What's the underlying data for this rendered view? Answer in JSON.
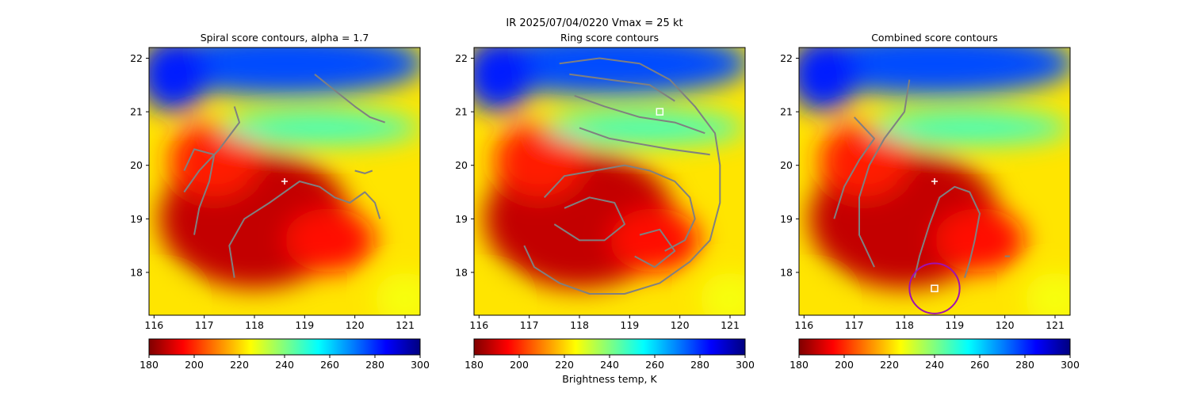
{
  "figure": {
    "suptitle": "IR  2025/07/04/0220    Vmax = 25 kt",
    "colorbar_label": "Brightness temp, K"
  },
  "chart_data": [
    {
      "type": "heatmap",
      "title": "Spiral score contours, alpha =  1.7",
      "xlabel": "",
      "ylabel": "",
      "xlim": [
        115.9,
        121.3
      ],
      "ylim": [
        17.2,
        22.2
      ],
      "xticks": [
        116,
        117,
        118,
        119,
        120,
        121
      ],
      "yticks": [
        18,
        19,
        20,
        21,
        22
      ],
      "colorbar": {
        "cmap": "jet_r",
        "min": 180,
        "max": 300,
        "ticks": [
          180,
          200,
          220,
          240,
          260,
          280,
          300
        ]
      },
      "markers": [
        {
          "kind": "cross",
          "color": "#ffffff",
          "x": 118.6,
          "y": 19.7
        }
      ],
      "contours": [
        {
          "color": "#808080",
          "points": [
            [
              117.6,
              21.1
            ],
            [
              117.7,
              20.8
            ],
            [
              117.3,
              20.3
            ],
            [
              116.9,
              19.9
            ],
            [
              116.6,
              19.5
            ]
          ]
        },
        {
          "color": "#808080",
          "points": [
            [
              116.6,
              19.9
            ],
            [
              116.8,
              20.3
            ],
            [
              117.2,
              20.2
            ],
            [
              117.1,
              19.7
            ],
            [
              116.9,
              19.2
            ],
            [
              116.8,
              18.7
            ]
          ]
        },
        {
          "color": "#808080",
          "points": [
            [
              117.6,
              17.9
            ],
            [
              117.5,
              18.5
            ],
            [
              117.8,
              19.0
            ],
            [
              118.3,
              19.3
            ],
            [
              118.9,
              19.7
            ],
            [
              119.3,
              19.6
            ],
            [
              119.6,
              19.4
            ],
            [
              119.9,
              19.3
            ],
            [
              120.2,
              19.5
            ],
            [
              120.4,
              19.3
            ],
            [
              120.5,
              19.0
            ]
          ]
        },
        {
          "color": "#808080",
          "points": [
            [
              119.2,
              21.7
            ],
            [
              119.6,
              21.4
            ],
            [
              120.0,
              21.1
            ],
            [
              120.3,
              20.9
            ],
            [
              120.6,
              20.8
            ]
          ]
        },
        {
          "color": "#808080",
          "points": [
            [
              120.0,
              19.9
            ],
            [
              120.2,
              19.85
            ],
            [
              120.35,
              19.9
            ]
          ]
        }
      ],
      "blobs": [
        {
          "x": 118.0,
          "y": 19.0,
          "rx": 1.9,
          "ry": 1.3,
          "value": 188
        },
        {
          "x": 117.2,
          "y": 20.1,
          "rx": 0.9,
          "ry": 0.7,
          "value": 198
        },
        {
          "x": 119.5,
          "y": 18.6,
          "rx": 0.9,
          "ry": 0.6,
          "value": 196
        },
        {
          "x": 118.6,
          "y": 21.9,
          "rx": 2.8,
          "ry": 0.6,
          "value": 276
        },
        {
          "x": 116.4,
          "y": 21.7,
          "rx": 0.7,
          "ry": 0.7,
          "value": 282
        },
        {
          "x": 119.3,
          "y": 20.7,
          "rx": 2.0,
          "ry": 0.3,
          "value": 248
        },
        {
          "x": 116.1,
          "y": 17.4,
          "rx": 0.5,
          "ry": 0.4,
          "value": 222
        },
        {
          "x": 121.0,
          "y": 17.5,
          "rx": 0.6,
          "ry": 0.5,
          "value": 226
        }
      ]
    },
    {
      "type": "heatmap",
      "title": "Ring score contours",
      "xlabel": "Brightness temp, K",
      "ylabel": "",
      "xlim": [
        115.9,
        121.3
      ],
      "ylim": [
        17.2,
        22.2
      ],
      "xticks": [
        116,
        117,
        118,
        119,
        120,
        121
      ],
      "yticks": [
        18,
        19,
        20,
        21,
        22
      ],
      "colorbar": {
        "cmap": "jet_r",
        "min": 180,
        "max": 300,
        "ticks": [
          180,
          200,
          220,
          240,
          260,
          280,
          300
        ]
      },
      "markers": [
        {
          "kind": "square",
          "color": "#ffffff",
          "x": 119.6,
          "y": 21.0
        }
      ],
      "contours": [
        {
          "color": "#808080",
          "points": [
            [
              117.6,
              21.9
            ],
            [
              118.4,
              22.0
            ],
            [
              119.2,
              21.9
            ],
            [
              119.8,
              21.6
            ],
            [
              120.3,
              21.1
            ],
            [
              120.7,
              20.6
            ],
            [
              120.8,
              20.0
            ],
            [
              120.8,
              19.3
            ],
            [
              120.6,
              18.6
            ],
            [
              120.2,
              18.2
            ],
            [
              119.6,
              17.8
            ],
            [
              118.9,
              17.6
            ],
            [
              118.2,
              17.6
            ],
            [
              117.6,
              17.8
            ],
            [
              117.1,
              18.1
            ],
            [
              116.9,
              18.5
            ]
          ]
        },
        {
          "color": "#808080",
          "points": [
            [
              117.3,
              19.4
            ],
            [
              117.7,
              19.8
            ],
            [
              118.3,
              19.9
            ],
            [
              118.9,
              20.0
            ],
            [
              119.4,
              19.9
            ],
            [
              119.9,
              19.7
            ],
            [
              120.2,
              19.4
            ],
            [
              120.3,
              19.0
            ],
            [
              120.1,
              18.6
            ],
            [
              119.7,
              18.4
            ]
          ]
        },
        {
          "color": "#808080",
          "points": [
            [
              117.9,
              21.3
            ],
            [
              118.5,
              21.1
            ],
            [
              119.2,
              20.9
            ],
            [
              119.9,
              20.8
            ],
            [
              120.5,
              20.6
            ]
          ]
        },
        {
          "color": "#808080",
          "points": [
            [
              118.0,
              20.7
            ],
            [
              118.6,
              20.5
            ],
            [
              119.2,
              20.4
            ],
            [
              119.8,
              20.3
            ],
            [
              120.6,
              20.2
            ]
          ]
        },
        {
          "color": "#808080",
          "points": [
            [
              117.5,
              18.9
            ],
            [
              118.0,
              18.6
            ],
            [
              118.5,
              18.6
            ],
            [
              118.9,
              18.9
            ],
            [
              118.7,
              19.3
            ],
            [
              118.2,
              19.4
            ],
            [
              117.7,
              19.2
            ]
          ]
        },
        {
          "color": "#808080",
          "points": [
            [
              119.1,
              18.3
            ],
            [
              119.5,
              18.1
            ],
            [
              119.9,
              18.4
            ],
            [
              119.6,
              18.8
            ],
            [
              119.2,
              18.7
            ]
          ]
        },
        {
          "color": "#808080",
          "points": [
            [
              117.8,
              21.7
            ],
            [
              118.6,
              21.6
            ],
            [
              119.4,
              21.5
            ],
            [
              119.9,
              21.2
            ]
          ]
        }
      ],
      "blobs": [
        {
          "x": 118.0,
          "y": 19.0,
          "rx": 1.9,
          "ry": 1.3,
          "value": 188
        },
        {
          "x": 117.2,
          "y": 20.1,
          "rx": 0.9,
          "ry": 0.7,
          "value": 198
        },
        {
          "x": 119.5,
          "y": 18.6,
          "rx": 0.9,
          "ry": 0.6,
          "value": 196
        },
        {
          "x": 118.6,
          "y": 21.9,
          "rx": 2.8,
          "ry": 0.6,
          "value": 276
        },
        {
          "x": 116.4,
          "y": 21.7,
          "rx": 0.7,
          "ry": 0.7,
          "value": 282
        },
        {
          "x": 119.3,
          "y": 20.7,
          "rx": 2.0,
          "ry": 0.3,
          "value": 248
        },
        {
          "x": 116.1,
          "y": 17.4,
          "rx": 0.5,
          "ry": 0.4,
          "value": 222
        },
        {
          "x": 121.0,
          "y": 17.5,
          "rx": 0.6,
          "ry": 0.5,
          "value": 226
        }
      ]
    },
    {
      "type": "heatmap",
      "title": "Combined score contours",
      "xlabel": "",
      "ylabel": "",
      "xlim": [
        115.9,
        121.3
      ],
      "ylim": [
        17.2,
        22.2
      ],
      "xticks": [
        116,
        117,
        118,
        119,
        120,
        121
      ],
      "yticks": [
        18,
        19,
        20,
        21,
        22
      ],
      "colorbar": {
        "cmap": "jet_r",
        "min": 180,
        "max": 300,
        "ticks": [
          180,
          200,
          220,
          240,
          260,
          280,
          300
        ]
      },
      "markers": [
        {
          "kind": "cross",
          "color": "#ffffff",
          "x": 118.6,
          "y": 19.7
        },
        {
          "kind": "square",
          "color": "#ffffff",
          "x": 118.6,
          "y": 17.7
        },
        {
          "kind": "circle",
          "color": "#a010b0",
          "x": 118.6,
          "y": 17.7,
          "radius_deg": 0.5
        }
      ],
      "contours": [
        {
          "color": "#808080",
          "points": [
            [
              117.0,
              20.9
            ],
            [
              117.4,
              20.5
            ],
            [
              117.1,
              20.1
            ],
            [
              116.8,
              19.6
            ],
            [
              116.6,
              19.0
            ]
          ]
        },
        {
          "color": "#808080",
          "points": [
            [
              118.1,
              21.6
            ],
            [
              118.0,
              21.0
            ],
            [
              117.6,
              20.5
            ],
            [
              117.3,
              20.0
            ],
            [
              117.1,
              19.4
            ],
            [
              117.1,
              18.7
            ],
            [
              117.4,
              18.1
            ]
          ]
        },
        {
          "color": "#808080",
          "points": [
            [
              118.2,
              17.9
            ],
            [
              118.3,
              18.3
            ],
            [
              118.5,
              18.9
            ],
            [
              118.7,
              19.4
            ],
            [
              119.0,
              19.6
            ],
            [
              119.3,
              19.5
            ],
            [
              119.5,
              19.1
            ],
            [
              119.4,
              18.6
            ],
            [
              119.3,
              18.2
            ],
            [
              119.2,
              17.9
            ]
          ]
        },
        {
          "color": "#808080",
          "points": [
            [
              120.0,
              18.3
            ],
            [
              120.1,
              18.3
            ]
          ]
        }
      ],
      "blobs": [
        {
          "x": 118.0,
          "y": 19.0,
          "rx": 1.9,
          "ry": 1.3,
          "value": 188
        },
        {
          "x": 117.2,
          "y": 20.1,
          "rx": 0.9,
          "ry": 0.7,
          "value": 198
        },
        {
          "x": 119.5,
          "y": 18.6,
          "rx": 0.9,
          "ry": 0.6,
          "value": 196
        },
        {
          "x": 118.6,
          "y": 21.9,
          "rx": 2.8,
          "ry": 0.6,
          "value": 276
        },
        {
          "x": 116.4,
          "y": 21.7,
          "rx": 0.7,
          "ry": 0.7,
          "value": 282
        },
        {
          "x": 119.3,
          "y": 20.7,
          "rx": 2.0,
          "ry": 0.3,
          "value": 248
        },
        {
          "x": 116.1,
          "y": 17.4,
          "rx": 0.5,
          "ry": 0.4,
          "value": 222
        },
        {
          "x": 121.0,
          "y": 17.5,
          "rx": 0.6,
          "ry": 0.5,
          "value": 226
        }
      ]
    }
  ]
}
